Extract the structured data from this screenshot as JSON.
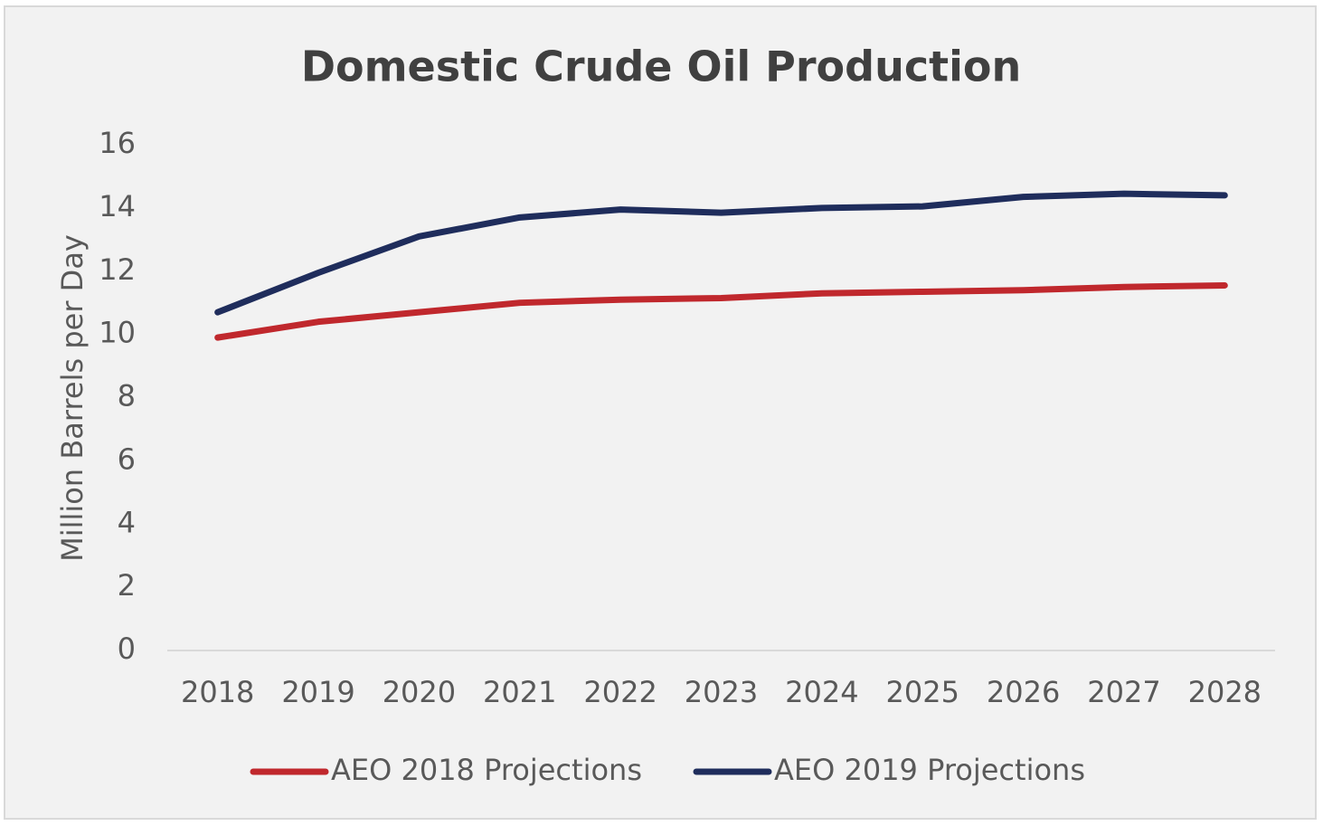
{
  "chart_data": {
    "type": "line",
    "title": "Domestic Crude Oil Production",
    "y_label": "Million Barrels per Day",
    "categories": [
      "2018",
      "2019",
      "2020",
      "2021",
      "2022",
      "2023",
      "2024",
      "2025",
      "2026",
      "2027",
      "2028"
    ],
    "series": [
      {
        "name": "AEO 2018 Projections",
        "color": "#c0282d",
        "values": [
          9.9,
          10.4,
          10.7,
          11.0,
          11.1,
          11.15,
          11.3,
          11.35,
          11.4,
          11.5,
          11.55
        ]
      },
      {
        "name": "AEO 2019 Projections",
        "color": "#1f2d5c",
        "values": [
          10.7,
          11.95,
          13.1,
          13.7,
          13.95,
          13.85,
          14.0,
          14.05,
          14.35,
          14.45,
          14.4
        ]
      }
    ],
    "ylim": [
      0,
      16
    ],
    "yticks": [
      0,
      2,
      4,
      6,
      8,
      10,
      12,
      14,
      16
    ],
    "grid": false,
    "legend": "bottom"
  }
}
